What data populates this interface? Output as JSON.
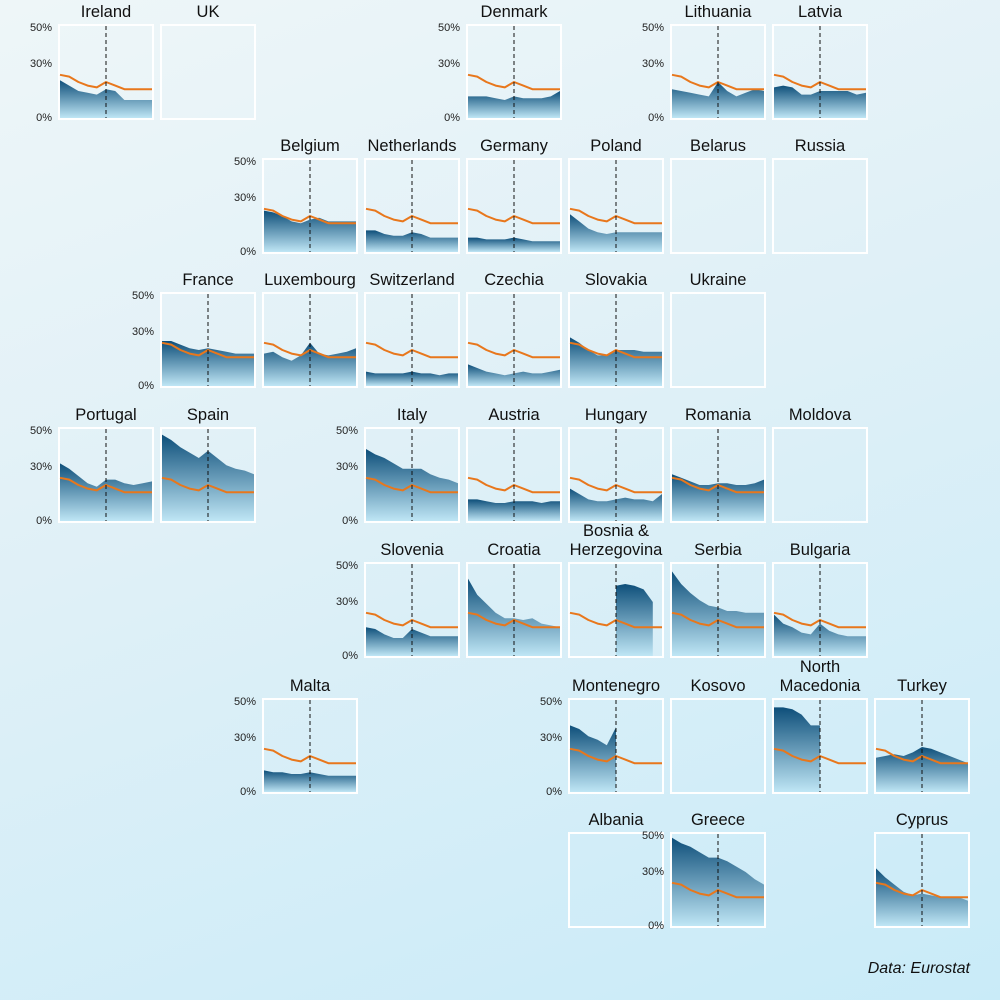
{
  "source": "Data: Eurostat",
  "chart_data": {
    "type": "area",
    "y_ticks": [
      "50%",
      "30%",
      "0%"
    ],
    "ylim": [
      0,
      50
    ],
    "x_points": 11,
    "marker_index": 5,
    "colors": {
      "area_top": "#0e4f7a",
      "area_bottom": "#bfe6f5",
      "reference_line": "#e8771c",
      "marker_line": "#111111",
      "frame": "#ffffff"
    },
    "reference_series": [
      24,
      23,
      20,
      18,
      17,
      20,
      18,
      16,
      16,
      16,
      16
    ],
    "countries": [
      {
        "name": "Ireland",
        "values": [
          21,
          18,
          15,
          14,
          13,
          16,
          15,
          10,
          10,
          10,
          10
        ],
        "ticks": true
      },
      {
        "name": "UK",
        "values": null,
        "ticks": false
      },
      {
        "name": "Denmark",
        "values": [
          12,
          12,
          12,
          11,
          10,
          12,
          11,
          11,
          11,
          12,
          15
        ],
        "ticks": true
      },
      {
        "name": "Lithuania",
        "values": [
          16,
          15,
          14,
          13,
          12,
          20,
          15,
          12,
          14,
          16,
          15
        ],
        "ticks": true
      },
      {
        "name": "Latvia",
        "values": [
          17,
          18,
          17,
          13,
          13,
          15,
          15,
          15,
          15,
          13,
          14
        ],
        "ticks": false
      },
      {
        "name": "Belgium",
        "values": [
          23,
          22,
          20,
          17,
          16,
          18,
          19,
          17,
          17,
          17,
          17
        ],
        "ticks": true
      },
      {
        "name": "Netherlands",
        "values": [
          12,
          12,
          10,
          9,
          9,
          11,
          10,
          8,
          8,
          8,
          8
        ],
        "ticks": false
      },
      {
        "name": "Germany",
        "values": [
          8,
          8,
          7,
          7,
          7,
          8,
          7,
          6,
          6,
          6,
          6
        ],
        "ticks": false
      },
      {
        "name": "Poland",
        "values": [
          21,
          17,
          13,
          11,
          10,
          11,
          11,
          11,
          11,
          11,
          11
        ],
        "ticks": false
      },
      {
        "name": "Belarus",
        "values": null,
        "ticks": false
      },
      {
        "name": "Russia",
        "values": null,
        "ticks": false
      },
      {
        "name": "France",
        "values": [
          25,
          25,
          23,
          21,
          20,
          21,
          20,
          19,
          18,
          18,
          18
        ],
        "ticks": true
      },
      {
        "name": "Luxembourg",
        "values": [
          18,
          19,
          16,
          14,
          17,
          24,
          18,
          17,
          18,
          19,
          21
        ],
        "ticks": false
      },
      {
        "name": "Switzerland",
        "values": [
          8,
          7,
          7,
          7,
          7,
          8,
          7,
          7,
          6,
          7,
          7
        ],
        "ticks": false
      },
      {
        "name": "Czechia",
        "values": [
          12,
          10,
          8,
          7,
          6,
          7,
          8,
          7,
          7,
          8,
          9
        ],
        "ticks": false
      },
      {
        "name": "Slovakia",
        "values": [
          27,
          24,
          20,
          17,
          17,
          20,
          20,
          20,
          19,
          19,
          19
        ],
        "ticks": false
      },
      {
        "name": "Ukraine",
        "values": null,
        "ticks": false
      },
      {
        "name": "Portugal",
        "values": [
          32,
          29,
          25,
          21,
          19,
          23,
          23,
          21,
          20,
          21,
          22
        ],
        "ticks": true
      },
      {
        "name": "Spain",
        "values": [
          48,
          45,
          41,
          38,
          35,
          39,
          35,
          31,
          29,
          28,
          26
        ],
        "ticks": false
      },
      {
        "name": "Italy",
        "values": [
          40,
          37,
          35,
          32,
          29,
          29,
          29,
          26,
          24,
          23,
          21
        ],
        "ticks": true
      },
      {
        "name": "Austria",
        "values": [
          12,
          12,
          11,
          10,
          10,
          11,
          11,
          11,
          10,
          11,
          11
        ],
        "ticks": false
      },
      {
        "name": "Hungary",
        "values": [
          18,
          15,
          12,
          11,
          11,
          12,
          13,
          12,
          12,
          11,
          15
        ],
        "ticks": false
      },
      {
        "name": "Romania",
        "values": [
          26,
          24,
          22,
          20,
          20,
          21,
          21,
          20,
          20,
          21,
          23
        ],
        "ticks": false
      },
      {
        "name": "Moldova",
        "values": null,
        "ticks": false
      },
      {
        "name": "Slovenia",
        "values": [
          16,
          15,
          12,
          10,
          10,
          15,
          13,
          11,
          11,
          11,
          11
        ],
        "ticks": true
      },
      {
        "name": "Croatia",
        "values": [
          43,
          34,
          29,
          24,
          21,
          21,
          20,
          21,
          18,
          17,
          16
        ],
        "ticks": false
      },
      {
        "name": "Bosnia & Herzegovina",
        "values": [
          null,
          null,
          null,
          null,
          null,
          39,
          40,
          39,
          37,
          30,
          null
        ],
        "ticks": false
      },
      {
        "name": "Serbia",
        "values": [
          47,
          40,
          35,
          31,
          28,
          27,
          25,
          25,
          24,
          24,
          24
        ],
        "ticks": false
      },
      {
        "name": "Bulgaria",
        "values": [
          23,
          18,
          16,
          13,
          12,
          18,
          14,
          12,
          11,
          11,
          11
        ],
        "ticks": false
      },
      {
        "name": "Malta",
        "values": [
          12,
          11,
          11,
          10,
          10,
          11,
          10,
          9,
          9,
          9,
          9
        ],
        "ticks": true
      },
      {
        "name": "Montenegro",
        "values": [
          37,
          35,
          31,
          29,
          26,
          36,
          null,
          null,
          null,
          null,
          null
        ],
        "ticks": true
      },
      {
        "name": "Kosovo",
        "values": null,
        "ticks": false
      },
      {
        "name": "North Macedonia",
        "values": [
          47,
          47,
          46,
          43,
          37,
          37,
          null,
          null,
          null,
          null,
          null
        ],
        "ticks": false
      },
      {
        "name": "Turkey",
        "values": [
          19,
          20,
          21,
          20,
          22,
          25,
          24,
          22,
          20,
          18,
          16
        ],
        "ticks": false
      },
      {
        "name": "Albania",
        "values": null,
        "ticks": false
      },
      {
        "name": "Greece",
        "values": [
          49,
          46,
          44,
          41,
          38,
          38,
          36,
          33,
          30,
          26,
          23
        ],
        "ticks": true
      },
      {
        "name": "Cyprus",
        "values": [
          32,
          27,
          23,
          19,
          17,
          18,
          17,
          16,
          16,
          16,
          14
        ],
        "ticks": false
      }
    ]
  }
}
